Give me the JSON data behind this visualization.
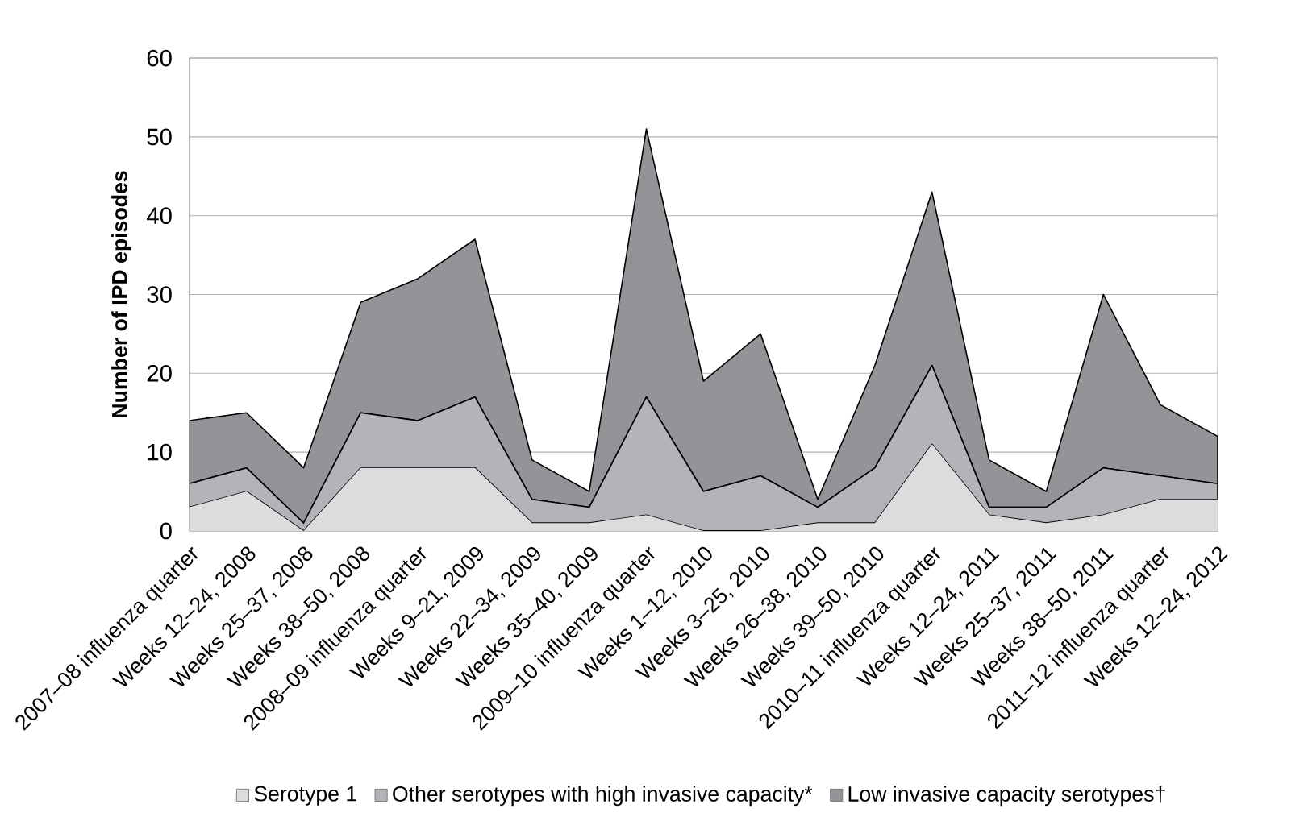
{
  "chart_data": {
    "type": "area",
    "stacked": true,
    "ylabel": "Number of IPD episodes",
    "ylim": [
      0,
      60
    ],
    "yticks": [
      0,
      10,
      20,
      30,
      40,
      50,
      60
    ],
    "grid": "y",
    "legend": "bottom",
    "categories": [
      "2007–08 influenza quarter",
      "Weeks 12–24, 2008",
      "Weeks 25–37, 2008",
      "Weeks 38–50, 2008",
      "2008–09 influenza quarter",
      "Weeks 9–21, 2009",
      "Weeks 22–34, 2009",
      "Weeks 35–40, 2009",
      "2009–10 influenza quarter",
      "Weeks 1–12, 2010",
      "Weeks 3–25, 2010",
      "Weeks 26–38, 2010",
      "Weeks 39–50, 2010",
      "2010–11 influenza quarter",
      "Weeks 12–24, 2011",
      "Weeks 25–37, 2011",
      "Weeks 38–50, 2011",
      "2011–12 influenza quarter",
      "Weeks 12–24, 2012"
    ],
    "series": [
      {
        "name": "Serotype 1",
        "color": "#dcdcde",
        "values": [
          3,
          5,
          0,
          8,
          8,
          8,
          1,
          1,
          2,
          0,
          0,
          1,
          1,
          11,
          2,
          1,
          2,
          4,
          4
        ]
      },
      {
        "name": "Other serotypes with high invasive capacity*",
        "color": "#b3b4b8",
        "values": [
          3,
          3,
          1,
          7,
          6,
          9,
          3,
          2,
          15,
          5,
          7,
          2,
          7,
          10,
          1,
          2,
          6,
          3,
          2
        ]
      },
      {
        "name": "Low invasive capacity serotypes†",
        "color": "#939498",
        "values": [
          8,
          7,
          7,
          14,
          18,
          20,
          5,
          2,
          34,
          14,
          18,
          1,
          13,
          22,
          6,
          2,
          22,
          9,
          6
        ]
      }
    ]
  }
}
